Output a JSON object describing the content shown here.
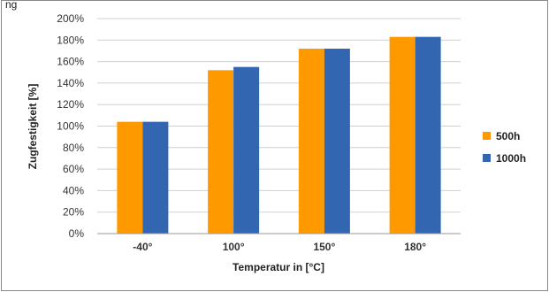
{
  "header_fragment": "ng",
  "chart_data": {
    "type": "bar",
    "title": "",
    "xlabel": "Temperatur in [°C]",
    "ylabel": "Zugfestigkeit [%]",
    "categories": [
      "-40°",
      "100°",
      "150°",
      "180°"
    ],
    "ylim": [
      0,
      200
    ],
    "y_ticks": [
      "0%",
      "20%",
      "40%",
      "60%",
      "80%",
      "100%",
      "120%",
      "140%",
      "160%",
      "180%",
      "200%"
    ],
    "grid": true,
    "legend_position": "right",
    "series": [
      {
        "name": "500h",
        "color": "#FF9900",
        "values": [
          104,
          152,
          172,
          183
        ]
      },
      {
        "name": "1000h",
        "color": "#3366B0",
        "values": [
          104,
          155,
          172,
          183
        ]
      }
    ]
  }
}
